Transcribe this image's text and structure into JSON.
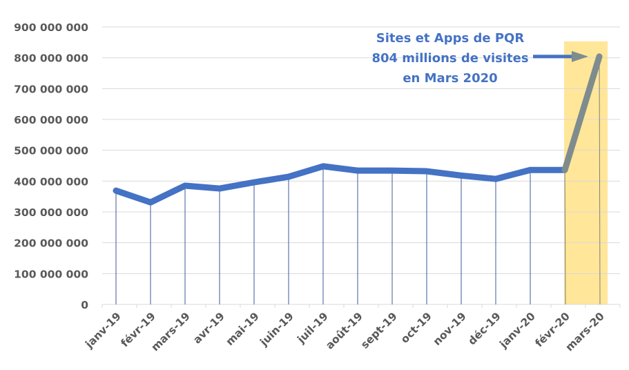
{
  "chart_data": {
    "type": "line",
    "title": "",
    "xlabel": "",
    "ylabel": "",
    "categories": [
      "janv-19",
      "févr-19",
      "mars-19",
      "avr-19",
      "mai-19",
      "juin-19",
      "juil-19",
      "août-19",
      "sept-19",
      "oct-19",
      "nov-19",
      "déc-19",
      "janv-20",
      "févr-20",
      "mars-20"
    ],
    "series": [
      {
        "name": "Visites Sites et Apps de PQR",
        "values": [
          369000000,
          331000000,
          385000000,
          376000000,
          396000000,
          414000000,
          448000000,
          434000000,
          434000000,
          432000000,
          418000000,
          407000000,
          436000000,
          436000000,
          804000000
        ]
      }
    ],
    "ylim": [
      0,
      900000000
    ],
    "yticks": [
      0,
      100000000,
      200000000,
      300000000,
      400000000,
      500000000,
      600000000,
      700000000,
      800000000,
      900000000
    ],
    "ytick_labels": [
      "0",
      "100 000 000",
      "200 000 000",
      "300 000 000",
      "400 000 000",
      "500 000 000",
      "600 000 000",
      "700 000 000",
      "800 000 000",
      "900 000 000"
    ],
    "grid": true,
    "legend": "none",
    "drop_lines": true,
    "highlight": {
      "from_category": "févr-20",
      "to_category": "mars-20",
      "color": "#ffe699"
    },
    "highlight_segment_color": "#7f8c8d",
    "annotations": [
      {
        "lines": [
          "Sites et Apps de PQR",
          "804 millions de visites",
          "en Mars 2020"
        ],
        "points_to": "mars-20",
        "color": "#4472c4"
      }
    ],
    "colors": {
      "line": "#4472c4",
      "highlight_line": "#7f8c8d",
      "gridline": "#d9d9d9",
      "axis_text": "#595959",
      "drop_line": "#3b5998",
      "band": "#ffe699",
      "annotation": "#4472c4"
    }
  }
}
